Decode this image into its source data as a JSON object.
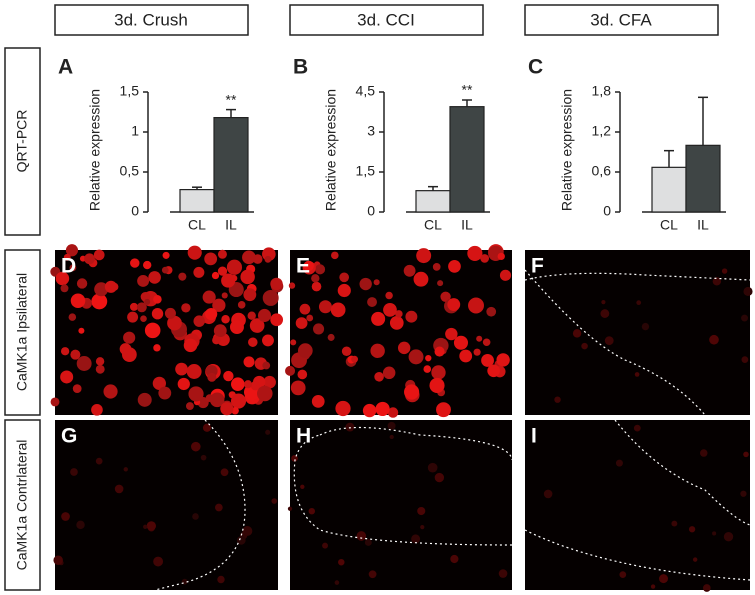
{
  "columns": [
    "3d. Crush",
    "3d. CCI",
    "3d. CFA"
  ],
  "rows": [
    "QRT-PCR",
    "CaMK1a Ipsilateral",
    "CaMK1a Contrlateral"
  ],
  "image_panels": [
    "D",
    "E",
    "F",
    "G",
    "H",
    "I"
  ],
  "chart_data": [
    {
      "type": "bar",
      "letter": "A",
      "y_label": "Relative expression",
      "categories": [
        "CL",
        "IL"
      ],
      "values": [
        0.28,
        1.18
      ],
      "errors": [
        0.03,
        0.1
      ],
      "colors": [
        "#dedfe0",
        "#3f4545"
      ],
      "significance": [
        null,
        "**"
      ],
      "ylim": [
        0,
        1.5
      ],
      "yticks": [
        0,
        {
          "value": 0.5,
          "label": "0,5"
        },
        1,
        {
          "value": 1.5,
          "label": "1,5"
        }
      ]
    },
    {
      "type": "bar",
      "letter": "B",
      "y_label": "Relative expression",
      "categories": [
        "CL",
        "IL"
      ],
      "values": [
        0.8,
        3.95
      ],
      "errors": [
        0.15,
        0.25
      ],
      "colors": [
        "#dedfe0",
        "#3f4545"
      ],
      "significance": [
        null,
        "**"
      ],
      "ylim": [
        0,
        4.5
      ],
      "yticks": [
        0,
        {
          "value": 1.5,
          "label": "1,5"
        },
        3,
        {
          "value": 4.5,
          "label": "4,5"
        }
      ]
    },
    {
      "type": "bar",
      "letter": "C",
      "y_label": "Relative expression",
      "categories": [
        "CL",
        "IL"
      ],
      "values": [
        0.67,
        1.0
      ],
      "errors": [
        0.25,
        0.72
      ],
      "colors": [
        "#dedfe0",
        "#3f4545"
      ],
      "ylim": [
        0,
        1.8
      ],
      "yticks": [
        0,
        {
          "value": 0.6,
          "label": "0,6"
        },
        {
          "value": 1.2,
          "label": "1,2"
        },
        {
          "value": 1.8,
          "label": "1,8"
        }
      ]
    }
  ]
}
